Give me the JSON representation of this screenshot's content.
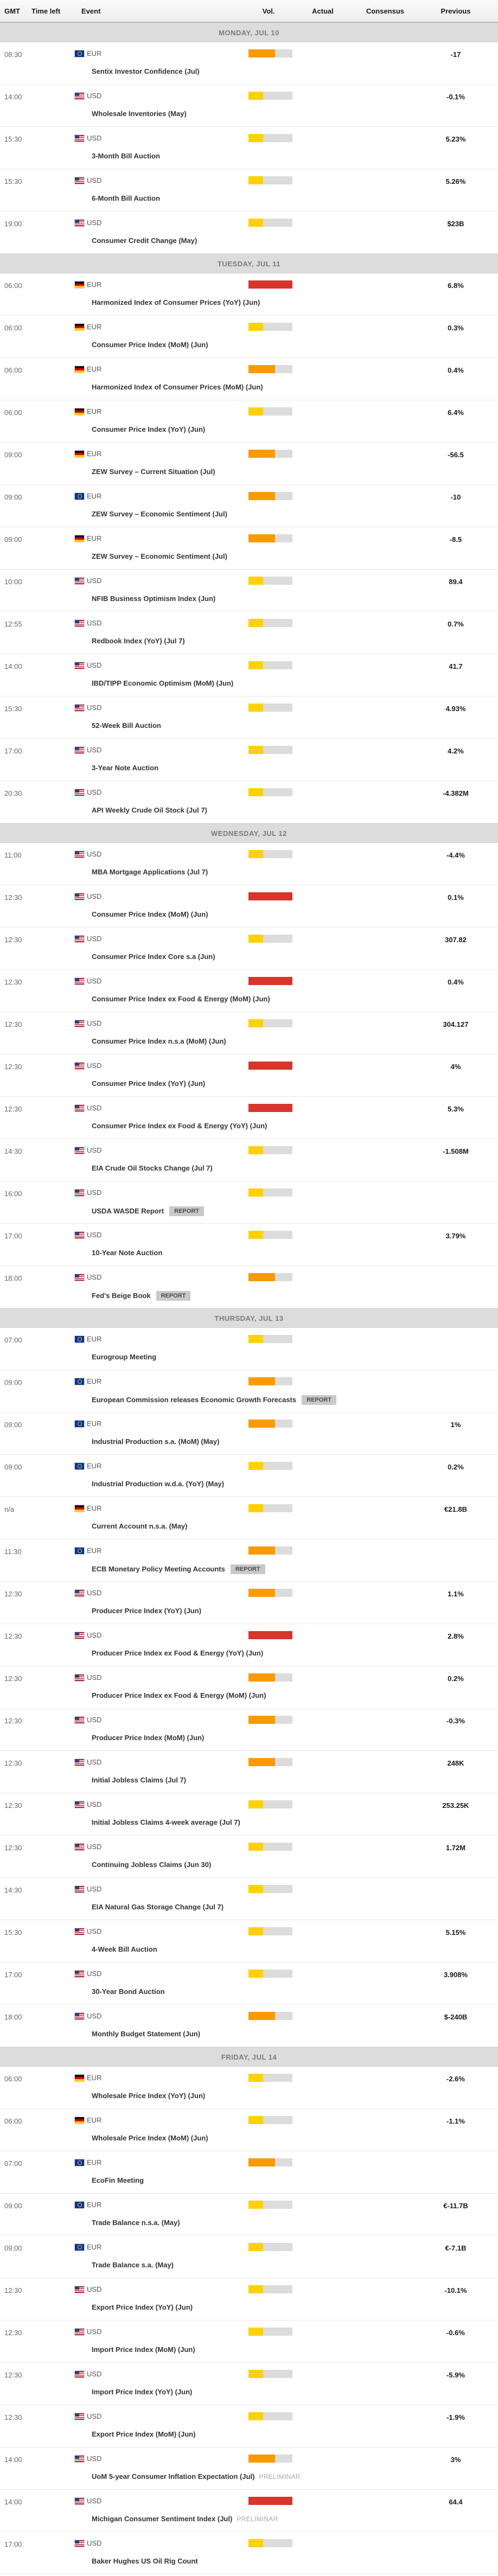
{
  "columns": {
    "gmt": "GMT",
    "time_left": "Time left",
    "event": "Event",
    "vol": "Vol.",
    "actual": "Actual",
    "consensus": "Consensus",
    "previous": "Previous"
  },
  "vol_colors": {
    "low": "#FFD100",
    "medium": "#F99B00",
    "high": "#D6362B",
    "track": "#DCDCDC"
  },
  "days": [
    {
      "label": "MONDAY, JUL 10",
      "events": [
        {
          "time": "08:30",
          "currency": "EUR",
          "flag": "eu",
          "event": "Sentix Investor Confidence (Jul)",
          "vol": "medium",
          "actual": "",
          "consensus": "",
          "previous": "-17"
        },
        {
          "time": "14:00",
          "currency": "USD",
          "flag": "us",
          "event": "Wholesale Inventories (May)",
          "vol": "low",
          "actual": "",
          "consensus": "",
          "previous": "-0.1%"
        },
        {
          "time": "15:30",
          "currency": "USD",
          "flag": "us",
          "event": "3-Month Bill Auction",
          "vol": "low",
          "actual": "",
          "consensus": "",
          "previous": "5.23%"
        },
        {
          "time": "15:30",
          "currency": "USD",
          "flag": "us",
          "event": "6-Month Bill Auction",
          "vol": "low",
          "actual": "",
          "consensus": "",
          "previous": "5.26%"
        },
        {
          "time": "19:00",
          "currency": "USD",
          "flag": "us",
          "event": "Consumer Credit Change (May)",
          "vol": "low",
          "actual": "",
          "consensus": "",
          "previous": "$23B"
        }
      ]
    },
    {
      "label": "TUESDAY, JUL 11",
      "events": [
        {
          "time": "06:00",
          "currency": "EUR",
          "flag": "de",
          "event": "Harmonized Index of Consumer Prices (YoY) (Jun)",
          "vol": "high",
          "actual": "",
          "consensus": "",
          "previous": "6.8%"
        },
        {
          "time": "06:00",
          "currency": "EUR",
          "flag": "de",
          "event": "Consumer Price Index (MoM) (Jun)",
          "vol": "low",
          "actual": "",
          "consensus": "",
          "previous": "0.3%"
        },
        {
          "time": "06:00",
          "currency": "EUR",
          "flag": "de",
          "event": "Harmonized Index of Consumer Prices (MoM) (Jun)",
          "vol": "medium",
          "actual": "",
          "consensus": "",
          "previous": "0.4%"
        },
        {
          "time": "06:00",
          "currency": "EUR",
          "flag": "de",
          "event": "Consumer Price Index (YoY) (Jun)",
          "vol": "low",
          "actual": "",
          "consensus": "",
          "previous": "6.4%"
        },
        {
          "time": "09:00",
          "currency": "EUR",
          "flag": "de",
          "event": "ZEW Survey – Current Situation (Jul)",
          "vol": "medium",
          "actual": "",
          "consensus": "",
          "previous": "-56.5"
        },
        {
          "time": "09:00",
          "currency": "EUR",
          "flag": "eu",
          "event": "ZEW Survey – Economic Sentiment (Jul)",
          "vol": "medium",
          "actual": "",
          "consensus": "",
          "previous": "-10"
        },
        {
          "time": "09:00",
          "currency": "EUR",
          "flag": "de",
          "event": "ZEW Survey – Economic Sentiment (Jul)",
          "vol": "medium",
          "actual": "",
          "consensus": "",
          "previous": "-8.5"
        },
        {
          "time": "10:00",
          "currency": "USD",
          "flag": "us",
          "event": "NFIB Business Optimism Index (Jun)",
          "vol": "low",
          "actual": "",
          "consensus": "",
          "previous": "89.4"
        },
        {
          "time": "12:55",
          "currency": "USD",
          "flag": "us",
          "event": "Redbook Index (YoY) (Jul 7)",
          "vol": "low",
          "actual": "",
          "consensus": "",
          "previous": "0.7%"
        },
        {
          "time": "14:00",
          "currency": "USD",
          "flag": "us",
          "event": "IBD/TIPP Economic Optimism (MoM) (Jun)",
          "vol": "low",
          "actual": "",
          "consensus": "",
          "previous": "41.7"
        },
        {
          "time": "15:30",
          "currency": "USD",
          "flag": "us",
          "event": "52-Week Bill Auction",
          "vol": "low",
          "actual": "",
          "consensus": "",
          "previous": "4.93%"
        },
        {
          "time": "17:00",
          "currency": "USD",
          "flag": "us",
          "event": "3-Year Note Auction",
          "vol": "low",
          "actual": "",
          "consensus": "",
          "previous": "4.2%"
        },
        {
          "time": "20:30",
          "currency": "USD",
          "flag": "us",
          "event": "API Weekly Crude Oil Stock (Jul 7)",
          "vol": "low",
          "actual": "",
          "consensus": "",
          "previous": "-4.382M"
        }
      ]
    },
    {
      "label": "WEDNESDAY, JUL 12",
      "events": [
        {
          "time": "11:00",
          "currency": "USD",
          "flag": "us",
          "event": "MBA Mortgage Applications (Jul 7)",
          "vol": "low",
          "actual": "",
          "consensus": "",
          "previous": "-4.4%"
        },
        {
          "time": "12:30",
          "currency": "USD",
          "flag": "us",
          "event": "Consumer Price Index (MoM) (Jun)",
          "vol": "high",
          "actual": "",
          "consensus": "",
          "previous": "0.1%"
        },
        {
          "time": "12:30",
          "currency": "USD",
          "flag": "us",
          "event": "Consumer Price Index Core s.a (Jun)",
          "vol": "low",
          "actual": "",
          "consensus": "",
          "previous": "307.82"
        },
        {
          "time": "12:30",
          "currency": "USD",
          "flag": "us",
          "event": "Consumer Price Index ex Food & Energy (MoM) (Jun)",
          "vol": "high",
          "actual": "",
          "consensus": "",
          "previous": "0.4%"
        },
        {
          "time": "12:30",
          "currency": "USD",
          "flag": "us",
          "event": "Consumer Price Index n.s.a (MoM) (Jun)",
          "vol": "low",
          "actual": "",
          "consensus": "",
          "previous": "304.127"
        },
        {
          "time": "12:30",
          "currency": "USD",
          "flag": "us",
          "event": "Consumer Price Index (YoY) (Jun)",
          "vol": "high",
          "actual": "",
          "consensus": "",
          "previous": "4%"
        },
        {
          "time": "12:30",
          "currency": "USD",
          "flag": "us",
          "event": "Consumer Price Index ex Food & Energy (YoY) (Jun)",
          "vol": "high",
          "actual": "",
          "consensus": "",
          "previous": "5.3%"
        },
        {
          "time": "14:30",
          "currency": "USD",
          "flag": "us",
          "event": "EIA Crude Oil Stocks Change (Jul 7)",
          "vol": "low",
          "actual": "",
          "consensus": "",
          "previous": "-1.508M"
        },
        {
          "time": "16:00",
          "currency": "USD",
          "flag": "us",
          "event": "USDA WASDE Report",
          "badge": "REPORT",
          "vol": "low",
          "actual": "",
          "consensus": "",
          "previous": ""
        },
        {
          "time": "17:00",
          "currency": "USD",
          "flag": "us",
          "event": "10-Year Note Auction",
          "vol": "low",
          "actual": "",
          "consensus": "",
          "previous": "3.79%"
        },
        {
          "time": "18:00",
          "currency": "USD",
          "flag": "us",
          "event": "Fed's Beige Book",
          "badge": "REPORT",
          "vol": "medium",
          "actual": "",
          "consensus": "",
          "previous": ""
        }
      ]
    },
    {
      "label": "THURSDAY, JUL 13",
      "events": [
        {
          "time": "07:00",
          "currency": "EUR",
          "flag": "eu",
          "event": "Eurogroup Meeting",
          "vol": "low",
          "actual": "",
          "consensus": "",
          "previous": ""
        },
        {
          "time": "09:00",
          "currency": "EUR",
          "flag": "eu",
          "event": "European Commission releases Economic Growth Forecasts",
          "badge": "REPORT",
          "vol": "medium",
          "actual": "",
          "consensus": "",
          "previous": ""
        },
        {
          "time": "09:00",
          "currency": "EUR",
          "flag": "eu",
          "event": "Industrial Production s.a. (MoM) (May)",
          "vol": "medium",
          "actual": "",
          "consensus": "",
          "previous": "1%"
        },
        {
          "time": "09:00",
          "currency": "EUR",
          "flag": "eu",
          "event": "Industrial Production w.d.a. (YoY) (May)",
          "vol": "low",
          "actual": "",
          "consensus": "",
          "previous": "0.2%"
        },
        {
          "time": "n/a",
          "currency": "EUR",
          "flag": "de",
          "event": "Current Account n.s.a. (May)",
          "vol": "low",
          "actual": "",
          "consensus": "",
          "previous": "€21.8B"
        },
        {
          "time": "11:30",
          "currency": "EUR",
          "flag": "eu",
          "event": "ECB Monetary Policy Meeting Accounts",
          "badge": "REPORT",
          "vol": "medium",
          "actual": "",
          "consensus": "",
          "previous": ""
        },
        {
          "time": "12:30",
          "currency": "USD",
          "flag": "us",
          "event": "Producer Price Index (YoY) (Jun)",
          "vol": "medium",
          "actual": "",
          "consensus": "",
          "previous": "1.1%"
        },
        {
          "time": "12:30",
          "currency": "USD",
          "flag": "us",
          "event": "Producer Price Index ex Food & Energy (YoY) (Jun)",
          "vol": "high",
          "actual": "",
          "consensus": "",
          "previous": "2.8%"
        },
        {
          "time": "12:30",
          "currency": "USD",
          "flag": "us",
          "event": "Producer Price Index ex Food & Energy (MoM) (Jun)",
          "vol": "medium",
          "actual": "",
          "consensus": "",
          "previous": "0.2%"
        },
        {
          "time": "12:30",
          "currency": "USD",
          "flag": "us",
          "event": "Producer Price Index (MoM) (Jun)",
          "vol": "medium",
          "actual": "",
          "consensus": "",
          "previous": "-0.3%"
        },
        {
          "time": "12:30",
          "currency": "USD",
          "flag": "us",
          "event": "Initial Jobless Claims (Jul 7)",
          "vol": "medium",
          "actual": "",
          "consensus": "",
          "previous": "248K"
        },
        {
          "time": "12:30",
          "currency": "USD",
          "flag": "us",
          "event": "Initial Jobless Claims 4-week average (Jul 7)",
          "vol": "low",
          "actual": "",
          "consensus": "",
          "previous": "253.25K"
        },
        {
          "time": "12:30",
          "currency": "USD",
          "flag": "us",
          "event": "Continuing Jobless Claims (Jun 30)",
          "vol": "low",
          "actual": "",
          "consensus": "",
          "previous": "1.72M"
        },
        {
          "time": "14:30",
          "currency": "USD",
          "flag": "us",
          "event": "EIA Natural Gas Storage Change (Jul 7)",
          "vol": "low",
          "actual": "",
          "consensus": "",
          "previous": ""
        },
        {
          "time": "15:30",
          "currency": "USD",
          "flag": "us",
          "event": "4-Week Bill Auction",
          "vol": "low",
          "actual": "",
          "consensus": "",
          "previous": "5.15%"
        },
        {
          "time": "17:00",
          "currency": "USD",
          "flag": "us",
          "event": "30-Year Bond Auction",
          "vol": "low",
          "actual": "",
          "consensus": "",
          "previous": "3.908%"
        },
        {
          "time": "18:00",
          "currency": "USD",
          "flag": "us",
          "event": "Monthly Budget Statement (Jun)",
          "vol": "medium",
          "actual": "",
          "consensus": "",
          "previous": "$-240B"
        }
      ]
    },
    {
      "label": "FRIDAY, JUL 14",
      "events": [
        {
          "time": "06:00",
          "currency": "EUR",
          "flag": "de",
          "event": "Wholesale Price Index (YoY) (Jun)",
          "vol": "low",
          "actual": "",
          "consensus": "",
          "previous": "-2.6%"
        },
        {
          "time": "06:00",
          "currency": "EUR",
          "flag": "de",
          "event": "Wholesale Price Index (MoM) (Jun)",
          "vol": "low",
          "actual": "",
          "consensus": "",
          "previous": "-1.1%"
        },
        {
          "time": "07:00",
          "currency": "EUR",
          "flag": "eu",
          "event": "EcoFin Meeting",
          "vol": "medium",
          "actual": "",
          "consensus": "",
          "previous": ""
        },
        {
          "time": "09:00",
          "currency": "EUR",
          "flag": "eu",
          "event": "Trade Balance n.s.a. (May)",
          "vol": "low",
          "actual": "",
          "consensus": "",
          "previous": "€-11.7B"
        },
        {
          "time": "09:00",
          "currency": "EUR",
          "flag": "eu",
          "event": "Trade Balance s.a. (May)",
          "vol": "low",
          "actual": "",
          "consensus": "",
          "previous": "€-7.1B"
        },
        {
          "time": "12:30",
          "currency": "USD",
          "flag": "us",
          "event": "Export Price Index (YoY) (Jun)",
          "vol": "low",
          "actual": "",
          "consensus": "",
          "previous": "-10.1%"
        },
        {
          "time": "12:30",
          "currency": "USD",
          "flag": "us",
          "event": "Import Price Index (MoM) (Jun)",
          "vol": "low",
          "actual": "",
          "consensus": "",
          "previous": "-0.6%"
        },
        {
          "time": "12:30",
          "currency": "USD",
          "flag": "us",
          "event": "Import Price Index (YoY) (Jun)",
          "vol": "low",
          "actual": "",
          "consensus": "",
          "previous": "-5.9%"
        },
        {
          "time": "12:30",
          "currency": "USD",
          "flag": "us",
          "event": "Export Price Index (MoM) (Jun)",
          "vol": "low",
          "actual": "",
          "consensus": "",
          "previous": "-1.9%"
        },
        {
          "time": "14:00",
          "currency": "USD",
          "flag": "us",
          "event": "UoM 5-year Consumer Inflation Expectation (Jul)",
          "note": "PRELIMINAR",
          "vol": "medium",
          "actual": "",
          "consensus": "",
          "previous": "3%"
        },
        {
          "time": "14:00",
          "currency": "USD",
          "flag": "us",
          "event": "Michigan Consumer Sentiment Index (Jul)",
          "note": "PRELIMINAR",
          "vol": "high",
          "actual": "",
          "consensus": "",
          "previous": "64.4"
        },
        {
          "time": "17:00",
          "currency": "USD",
          "flag": "us",
          "event": "Baker Hughes US Oil Rig Count",
          "vol": "low",
          "actual": "",
          "consensus": "",
          "previous": ""
        }
      ]
    }
  ]
}
